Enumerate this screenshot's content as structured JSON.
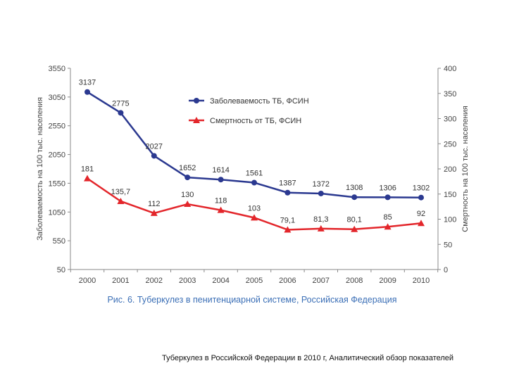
{
  "chart_data": {
    "type": "line",
    "categories": [
      "2000",
      "2001",
      "2002",
      "2003",
      "2004",
      "2005",
      "2006",
      "2007",
      "2008",
      "2009",
      "2010"
    ],
    "left_axis": {
      "label": "Заболеваемость на 100 тыс. населения",
      "ylim": [
        50,
        3550
      ],
      "ticks": [
        "50",
        "550",
        "1050",
        "1550",
        "2050",
        "2550",
        "3050",
        "3550"
      ]
    },
    "right_axis": {
      "label": "Смертность на 100 тыс. населения",
      "ylim": [
        0,
        400
      ],
      "ticks": [
        "0",
        "50",
        "100",
        "150",
        "200",
        "250",
        "300",
        "350",
        "400"
      ]
    },
    "series": [
      {
        "name": "Заболеваемость ТБ, ФСИН",
        "axis": "left",
        "color": "#2b3990",
        "marker": "circle",
        "values": [
          3137,
          2775,
          2027,
          1652,
          1614,
          1561,
          1387,
          1372,
          1308,
          1306,
          1302
        ],
        "labels": [
          "3137",
          "2775",
          "2027",
          "1652",
          "1614",
          "1561",
          "1387",
          "1372",
          "1308",
          "1306",
          "1302"
        ]
      },
      {
        "name": "Смертность от ТБ, ФСИН",
        "axis": "right",
        "color": "#e3262b",
        "marker": "triangle",
        "values": [
          181,
          135.7,
          112,
          130,
          118,
          103,
          79.1,
          81.3,
          80.1,
          85,
          92
        ],
        "labels": [
          "181",
          "135,7",
          "112",
          "130",
          "118",
          "103",
          "79,1",
          "81,3",
          "80,1",
          "85",
          "92"
        ]
      }
    ],
    "legend_position": "top-right",
    "grid": false,
    "caption": "Рис. 6. Туберкулез в пенитенциарной системе, Российская Федерация"
  },
  "source_note": "Туберкулез в Российской Федерации в 2010 г, Аналитический обзор показателей"
}
